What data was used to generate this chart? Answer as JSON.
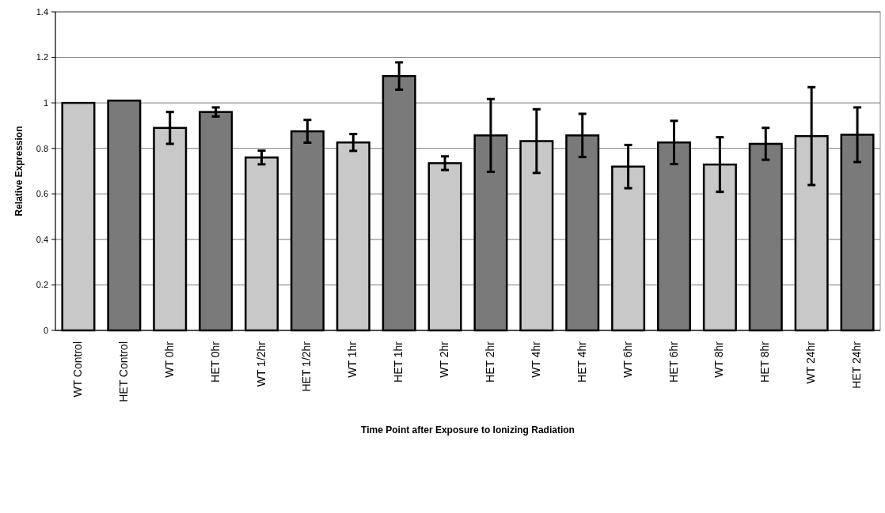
{
  "chart_data": {
    "type": "bar",
    "xlabel": "Time Point after Exposure to Ionizing Radiation",
    "ylabel": "Relative Expression",
    "categories": [
      "WT Control",
      "HET Control",
      "WT 0hr",
      "HET 0hr",
      "WT 1/2hr",
      "HET 1/2hr",
      "WT 1hr",
      "HET 1hr",
      "WT 2hr",
      "HET 2hr",
      "WT 4hr",
      "HET 4hr",
      "WT 6hr",
      "HET 6hr",
      "WT 8hr",
      "HET 8hr",
      "WT 24hr",
      "HET 24hr"
    ],
    "values": [
      1.0,
      1.01,
      0.89,
      0.96,
      0.76,
      0.875,
      0.826,
      1.118,
      0.735,
      0.857,
      0.832,
      0.857,
      0.72,
      0.826,
      0.729,
      0.82,
      0.854,
      0.86
    ],
    "errors": [
      null,
      null,
      0.07,
      0.02,
      0.03,
      0.05,
      0.037,
      0.06,
      0.03,
      0.16,
      0.14,
      0.095,
      0.095,
      0.095,
      0.12,
      0.07,
      0.215,
      0.12
    ],
    "colors": [
      "#c8c8c8",
      "#7a7a7a",
      "#c8c8c8",
      "#7a7a7a",
      "#c8c8c8",
      "#7a7a7a",
      "#c8c8c8",
      "#7a7a7a",
      "#c8c8c8",
      "#7a7a7a",
      "#c8c8c8",
      "#7a7a7a",
      "#c8c8c8",
      "#7a7a7a",
      "#c8c8c8",
      "#7a7a7a",
      "#c8c8c8",
      "#7a7a7a"
    ],
    "ylim": [
      0,
      1.4
    ],
    "yticks": [
      0,
      0.2,
      0.4,
      0.6,
      0.8,
      1,
      1.2,
      1.4
    ],
    "grid": "y"
  }
}
